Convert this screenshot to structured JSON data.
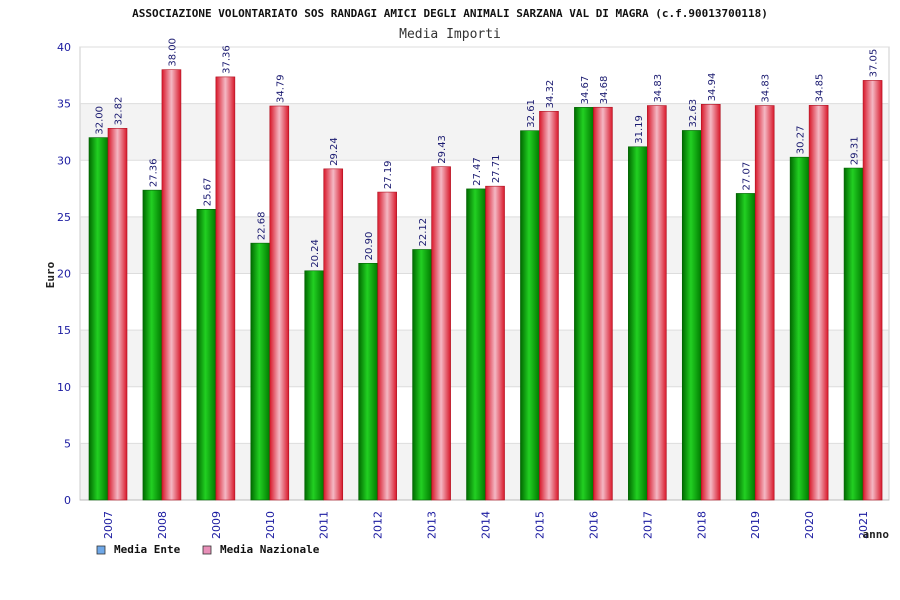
{
  "chart_data": {
    "type": "bar",
    "title": "ASSOCIAZIONE VOLONTARIATO SOS RANDAGI AMICI DEGLI ANIMALI SARZANA VAL DI MAGRA (c.f.90013700118)",
    "subtitle": "Media Importi",
    "xlabel": "anno",
    "ylabel": "Euro",
    "ylim": [
      0,
      40
    ],
    "yticks": [
      0,
      5,
      10,
      15,
      20,
      25,
      30,
      35,
      40
    ],
    "grid": true,
    "legend_position": "bottom-left",
    "categories": [
      "2007",
      "2008",
      "2009",
      "2010",
      "2011",
      "2012",
      "2013",
      "2014",
      "2015",
      "2016",
      "2017",
      "2018",
      "2019",
      "2020",
      "2021"
    ],
    "series": [
      {
        "name": "Media Ente",
        "legend_color": "#6fa8e8",
        "bar_color": "#0a9e0a",
        "values": [
          32.0,
          27.36,
          25.67,
          22.68,
          20.24,
          20.9,
          22.12,
          27.47,
          32.61,
          34.67,
          31.19,
          32.63,
          27.07,
          30.27,
          29.31
        ],
        "labels": [
          "32.00",
          "27.36",
          "25.67",
          "22.68",
          "20.24",
          "20.90",
          "22.12",
          "27.47",
          "32.61",
          "34.67",
          "31.19",
          "32.63",
          "27.07",
          "30.27",
          "29.31"
        ]
      },
      {
        "name": "Media Nazionale",
        "legend_color": "#e88fb8",
        "bar_color": "#e8283a",
        "values": [
          32.82,
          38.0,
          37.36,
          34.79,
          29.24,
          27.19,
          29.43,
          27.71,
          34.32,
          34.68,
          34.83,
          34.94,
          34.83,
          34.85,
          37.05
        ],
        "labels": [
          "32.82",
          "38.00",
          "37.36",
          "34.79",
          "29.24",
          "27.19",
          "29.43",
          "27.71",
          "34.32",
          "34.68",
          "34.83",
          "34.94",
          "34.83",
          "34.85",
          "37.05"
        ]
      }
    ]
  }
}
